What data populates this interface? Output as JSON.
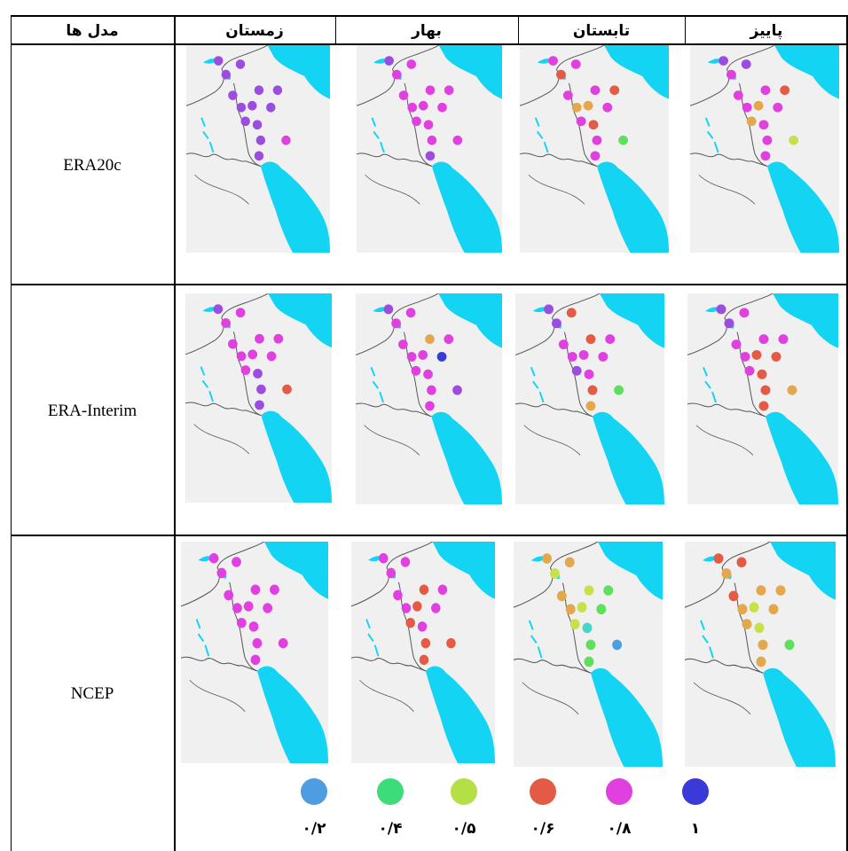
{
  "headers": {
    "models": "مدل ها",
    "winter": "زمستان",
    "spring": "بهار",
    "summer": "تابستان",
    "autumn": "پاییز"
  },
  "models": [
    "ERA20c",
    "ERA-Interim",
    "NCEP"
  ],
  "legend": [
    {
      "label": "۰/۲",
      "color": "#4d9de0"
    },
    {
      "label": "۰/۴",
      "color": "#3ddc7a"
    },
    {
      "label": "۰/۵",
      "color": "#b5e045"
    },
    {
      "label": "۰/۶",
      "color": "#e35b45"
    },
    {
      "label": "۰/۸",
      "color": "#e040e0"
    },
    {
      "label": "۱",
      "color": "#3a3ad8"
    }
  ],
  "map_colors": {
    "land": "#f0f0f0",
    "water": "#14d4f4",
    "border": "#555555"
  },
  "maps": [
    [
      "#9b4de0",
      "#9b4de0",
      "#9b4de0",
      "#9b4de0",
      "#9b4de0",
      "#9b4de0",
      "#9b4de0",
      "#9b4de0",
      "#9b4de0",
      "#9b4de0",
      "#9b4de0",
      "#9b4de0",
      "#9b4de0",
      "#e040e0"
    ],
    [
      "#9b4de0",
      "#e040e0",
      "#e040e0",
      "#e040e0",
      "#e040e0",
      "#e040e0",
      "#e040e0",
      "#e040e0",
      "#e040e0",
      "#e040e0",
      "#e040e0",
      "#e040e0",
      "#9b4de0",
      "#e040e0"
    ],
    [
      "#e040e0",
      "#e35b45",
      "#e040e0",
      "#e040e0",
      "#e040e0",
      "#e35b45",
      "#e3a84e",
      "#e3a84e",
      "#e040e0",
      "#e040e0",
      "#e35b45",
      "#e040e0",
      "#e040e0",
      "#5ee05e"
    ],
    [
      "#9b4de0",
      "#e040e0",
      "#9b4de0",
      "#e040e0",
      "#e040e0",
      "#e35b45",
      "#e040e0",
      "#e3a84e",
      "#e040e0",
      "#e3a84e",
      "#e040e0",
      "#e040e0",
      "#e040e0",
      "#c8e04a"
    ],
    [
      "#9b4de0",
      "#e040e0",
      "#e040e0",
      "#e040e0",
      "#e040e0",
      "#e040e0",
      "#e040e0",
      "#e040e0",
      "#e040e0",
      "#e040e0",
      "#9b4de0",
      "#9b4de0",
      "#9b4de0",
      "#e35b45"
    ],
    [
      "#9b4de0",
      "#e040e0",
      "#e040e0",
      "#e040e0",
      "#e3a84e",
      "#e040e0",
      "#e040e0",
      "#e040e0",
      "#3a3ad8",
      "#e040e0",
      "#e040e0",
      "#e040e0",
      "#e040e0",
      "#9b4de0"
    ],
    [
      "#9b4de0",
      "#9b4de0",
      "#e35b45",
      "#e040e0",
      "#e35b45",
      "#e040e0",
      "#e040e0",
      "#e040e0",
      "#e040e0",
      "#9b4de0",
      "#e040e0",
      "#e35b45",
      "#e3a84e",
      "#5ee05e"
    ],
    [
      "#9b4de0",
      "#9b4de0",
      "#e040e0",
      "#e040e0",
      "#e040e0",
      "#e040e0",
      "#e040e0",
      "#e35b45",
      "#e35b45",
      "#e040e0",
      "#e35b45",
      "#e35b45",
      "#e35b45",
      "#e3a84e"
    ],
    [
      "#e040e0",
      "#e040e0",
      "#e040e0",
      "#e040e0",
      "#e040e0",
      "#e040e0",
      "#e040e0",
      "#e040e0",
      "#e040e0",
      "#e040e0",
      "#e040e0",
      "#e040e0",
      "#e040e0",
      "#e040e0"
    ],
    [
      "#e040e0",
      "#e040e0",
      "#e040e0",
      "#e040e0",
      "#e35b45",
      "#e040e0",
      "#e040e0",
      "#e35b45",
      "#e040e0",
      "#e35b45",
      "#e040e0",
      "#e35b45",
      "#e35b45",
      "#e35b45"
    ],
    [
      "#e3a84e",
      "#c8e04a",
      "#e3a84e",
      "#e3a84e",
      "#c8e04a",
      "#5ee05e",
      "#e3a84e",
      "#c8e04a",
      "#5ee05e",
      "#c8e04a",
      "#45d6c8",
      "#5ee05e",
      "#5ee05e",
      "#4d9de0"
    ],
    [
      "#e35b45",
      "#e3a84e",
      "#e35b45",
      "#e35b45",
      "#e3a84e",
      "#e3a84e",
      "#e3a84e",
      "#c8e04a",
      "#e3a84e",
      "#e3a84e",
      "#c8e04a",
      "#e3a84e",
      "#e3a84e",
      "#5ee05e"
    ]
  ]
}
